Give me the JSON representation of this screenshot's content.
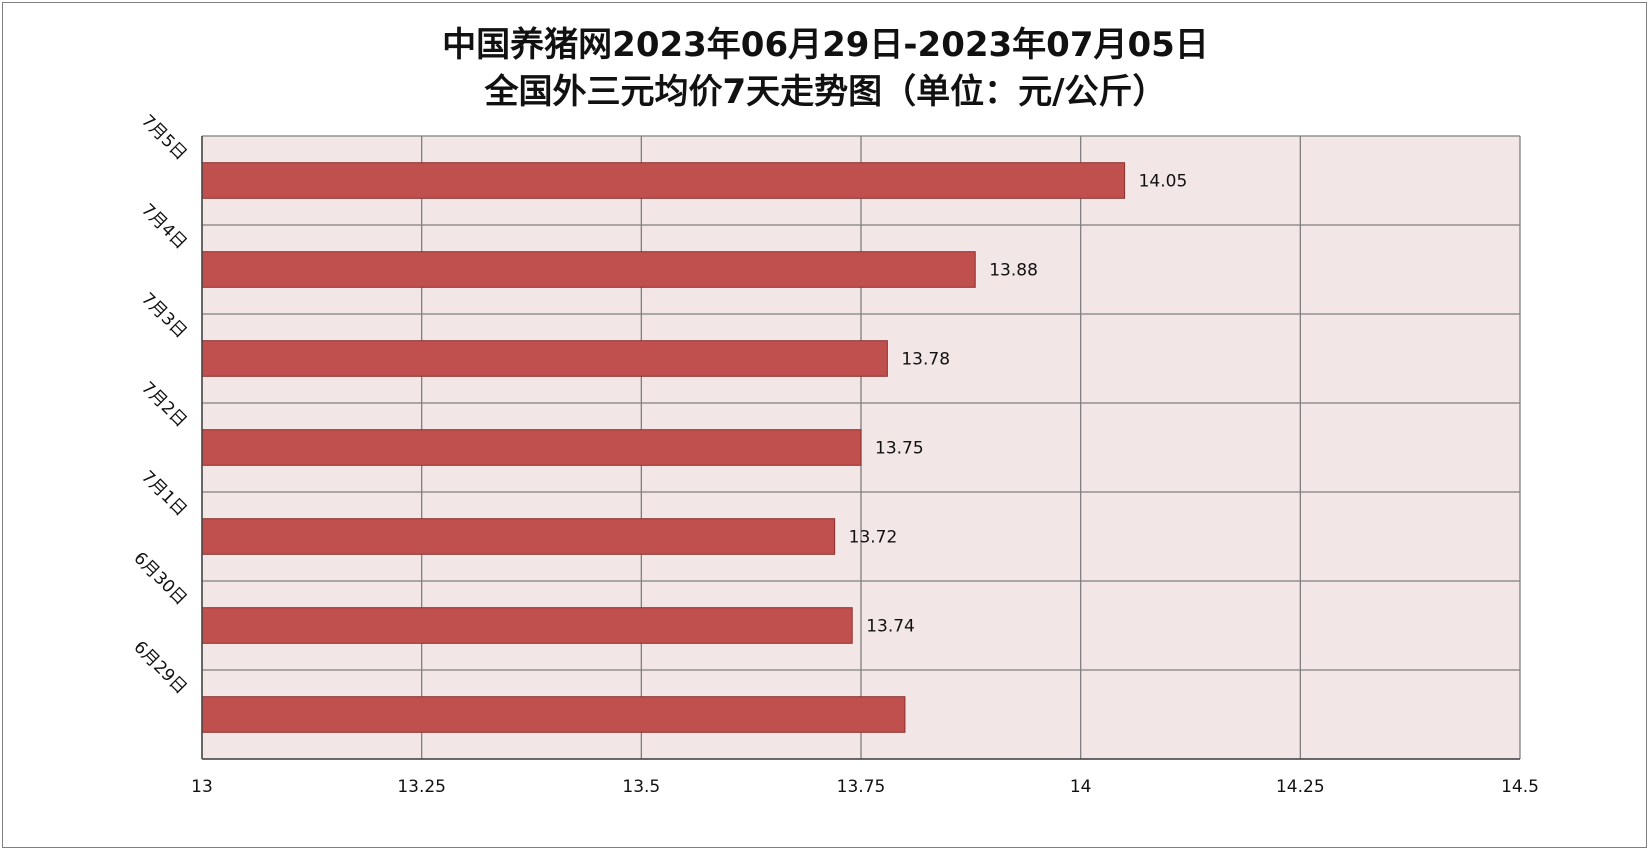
{
  "chart_data": {
    "type": "bar",
    "orientation": "horizontal",
    "title_lines": [
      "中国养猪网2023年06月29日-2023年07月05日",
      "全国外三元均价7天走势图（单位：元/公斤）"
    ],
    "categories": [
      "6月29日",
      "6月30日",
      "7月1日",
      "7月2日",
      "7月3日",
      "7月4日",
      "7月5日"
    ],
    "values": [
      13.8,
      13.74,
      13.72,
      13.75,
      13.78,
      13.88,
      14.05
    ],
    "data_labels": [
      "",
      "13.74",
      "13.72",
      "13.75",
      "13.78",
      "13.88",
      "14.05"
    ],
    "xlim": [
      13,
      14.5
    ],
    "xticks": [
      13,
      13.25,
      13.5,
      13.75,
      14,
      14.25,
      14.5
    ],
    "xtick_labels": [
      "13",
      "13.25",
      "13.5",
      "13.75",
      "14",
      "14.25",
      "14.5"
    ],
    "grid": true,
    "legend": "none",
    "colors": {
      "bar_fill": "#c0504d",
      "bar_stroke": "#8c2f2d",
      "plot_bg": "#f2e6e6",
      "grid": "#7f7f7f"
    }
  }
}
